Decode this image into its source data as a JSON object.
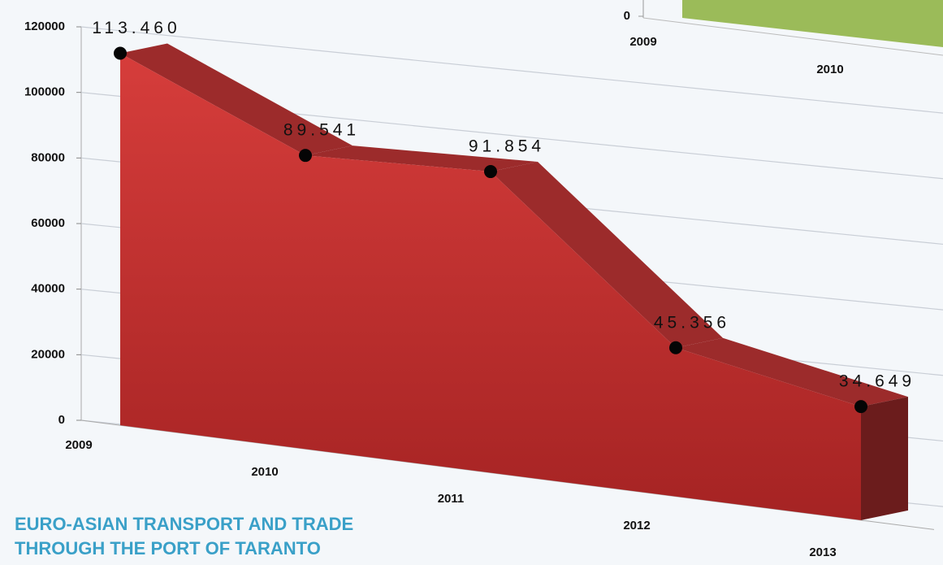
{
  "chart_data": [
    {
      "type": "area3d",
      "title_lines": [
        "EURO-ASIAN TRANSPORT AND TRADE",
        "THROUGH THE PORT OF TARANTO"
      ],
      "categories": [
        "2009",
        "2010",
        "2011",
        "2012",
        "2013"
      ],
      "values": [
        113460,
        89541,
        91854,
        45356,
        34649
      ],
      "value_labels": [
        "113.460",
        "89.541",
        "91.854",
        "45.356",
        "34.649"
      ],
      "color": "#c93434",
      "ylim": [
        0,
        120000
      ],
      "yticks": [
        0,
        20000,
        40000,
        60000,
        80000,
        100000,
        120000
      ],
      "grid": true
    },
    {
      "type": "bar-partial",
      "categories": [
        "2009",
        "2010"
      ],
      "yticks": [
        0
      ],
      "color": "#9bbb59"
    }
  ]
}
